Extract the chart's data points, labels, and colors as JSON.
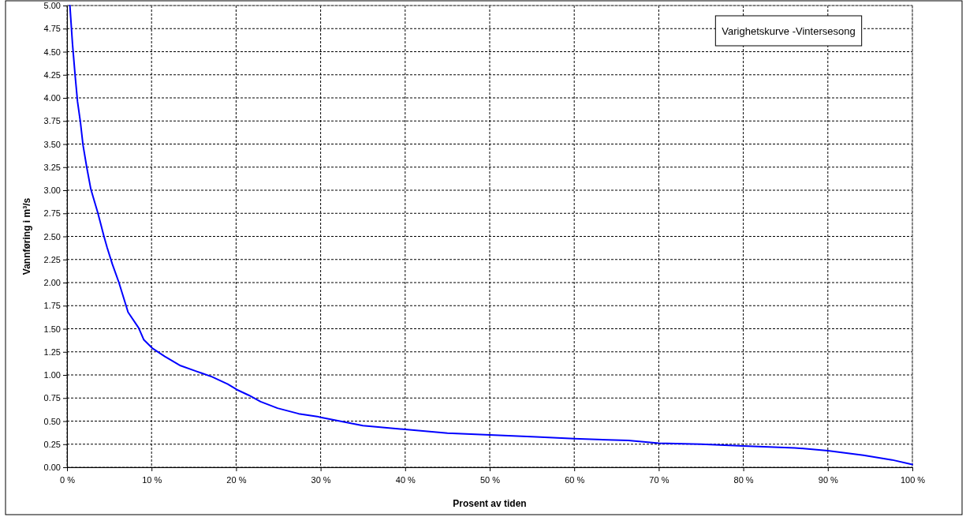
{
  "chart_data": {
    "type": "line",
    "title": "Varighetskurve -Vintersesong",
    "xlabel": "Prosent av tiden",
    "ylabel": "Vannføring i m³/s",
    "x": [
      0.34,
      0.65,
      0.96,
      1.24,
      1.58,
      1.89,
      2.33,
      2.82,
      3.66,
      4.37,
      4.74,
      5.36,
      6.14,
      7.22,
      8.47,
      9.09,
      10.08,
      11.57,
      13.43,
      15.29,
      17.15,
      19.01,
      20.1,
      21.5,
      22.9,
      24.9,
      27.4,
      29.6,
      30,
      35,
      40,
      45,
      50,
      55.5,
      60,
      66.4,
      70,
      75,
      80,
      86.1,
      90,
      94.2,
      97.6,
      100
    ],
    "series": [
      {
        "color": "#0000ff",
        "values": [
          5.0,
          4.58,
          4.24,
          3.96,
          3.74,
          3.49,
          3.25,
          3.01,
          2.75,
          2.5,
          2.38,
          2.2,
          2.0,
          1.68,
          1.51,
          1.38,
          1.29,
          1.2,
          1.1,
          1.04,
          0.98,
          0.9,
          0.84,
          0.78,
          0.71,
          0.64,
          0.58,
          0.55,
          0.54,
          0.45,
          0.41,
          0.37,
          0.35,
          0.33,
          0.31,
          0.29,
          0.26,
          0.25,
          0.23,
          0.21,
          0.18,
          0.13,
          0.08,
          0.03
        ]
      }
    ],
    "xlim": [
      0,
      100
    ],
    "xticks": [
      {
        "value": 0,
        "label": "0 %"
      },
      {
        "value": 10,
        "label": "10 %"
      },
      {
        "value": 20,
        "label": "20 %"
      },
      {
        "value": 30,
        "label": "30 %"
      },
      {
        "value": 40,
        "label": "40 %"
      },
      {
        "value": 50,
        "label": "50 %"
      },
      {
        "value": 60,
        "label": "60 %"
      },
      {
        "value": 70,
        "label": "70 %"
      },
      {
        "value": 80,
        "label": "80 %"
      },
      {
        "value": 90,
        "label": "90 %"
      },
      {
        "value": 100,
        "label": "100 %"
      }
    ],
    "ylim": [
      0,
      5
    ],
    "yticks": [
      {
        "value": 0,
        "label": "0.00"
      },
      {
        "value": 0.25,
        "label": "0.25"
      },
      {
        "value": 0.5,
        "label": "0.50"
      },
      {
        "value": 0.75,
        "label": "0.75"
      },
      {
        "value": 1,
        "label": "1.00"
      },
      {
        "value": 1.25,
        "label": "1.25"
      },
      {
        "value": 1.5,
        "label": "1.50"
      },
      {
        "value": 1.75,
        "label": "1.75"
      },
      {
        "value": 2,
        "label": "2.00"
      },
      {
        "value": 2.25,
        "label": "2.25"
      },
      {
        "value": 2.5,
        "label": "2.50"
      },
      {
        "value": 2.75,
        "label": "2.75"
      },
      {
        "value": 3,
        "label": "3.00"
      },
      {
        "value": 3.25,
        "label": "3.25"
      },
      {
        "value": 3.5,
        "label": "3.50"
      },
      {
        "value": 3.75,
        "label": "3.75"
      },
      {
        "value": 4,
        "label": "4.00"
      },
      {
        "value": 4.25,
        "label": "4.25"
      },
      {
        "value": 4.5,
        "label": "4.50"
      },
      {
        "value": 4.75,
        "label": "4.75"
      },
      {
        "value": 5,
        "label": "5.00"
      }
    ],
    "grid": true,
    "line_style": "solid",
    "marker": "none"
  }
}
